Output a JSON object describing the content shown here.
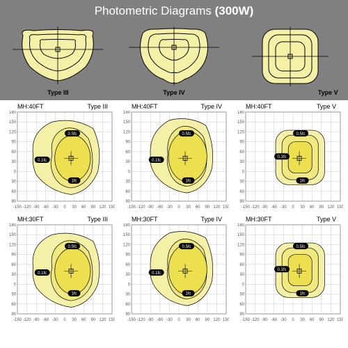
{
  "header": {
    "title_pre": "Photometric Diagrams ",
    "title_bold": "(300W)"
  },
  "colors": {
    "bg_header": "#808080",
    "contour_light": "#f4f0a8",
    "contour_mid": "#f0e880",
    "contour_dark": "#ece050",
    "stroke": "#000000",
    "grid_line": "#c8c8c8",
    "axis_text": "#555555",
    "badge_bg": "#000000",
    "badge_text": "#ffffff"
  },
  "top_diagrams": [
    {
      "label": "Type III"
    },
    {
      "label": "Type IV"
    },
    {
      "label": "Type V"
    }
  ],
  "charts": [
    {
      "mh": "MH:40FT",
      "type": "Type III",
      "shape": 3
    },
    {
      "mh": "MH:40FT",
      "type": "Type IV",
      "shape": 4
    },
    {
      "mh": "MH:40FT",
      "type": "Type V",
      "shape": 5
    },
    {
      "mh": "MH:30FT",
      "type": "Type III",
      "shape": 3
    },
    {
      "mh": "MH:30FT",
      "type": "Type IV",
      "shape": 4
    },
    {
      "mh": "MH:30FT",
      "type": "Type V",
      "shape": 5
    }
  ],
  "axes": {
    "x_ticks": [
      -150,
      -120,
      -90,
      -60,
      -30,
      0,
      30,
      60,
      90,
      120,
      150
    ],
    "y_ticks": [
      180,
      150,
      120,
      90,
      60,
      30,
      0,
      30,
      60,
      90
    ],
    "x_range": [
      -150,
      150
    ],
    "y_range": [
      -90,
      180
    ],
    "grid_step": 30,
    "tick_fontsize": 6
  },
  "badges": {
    "outer": "0.1fc",
    "mid": "0.5fc",
    "inner": "1fc"
  }
}
